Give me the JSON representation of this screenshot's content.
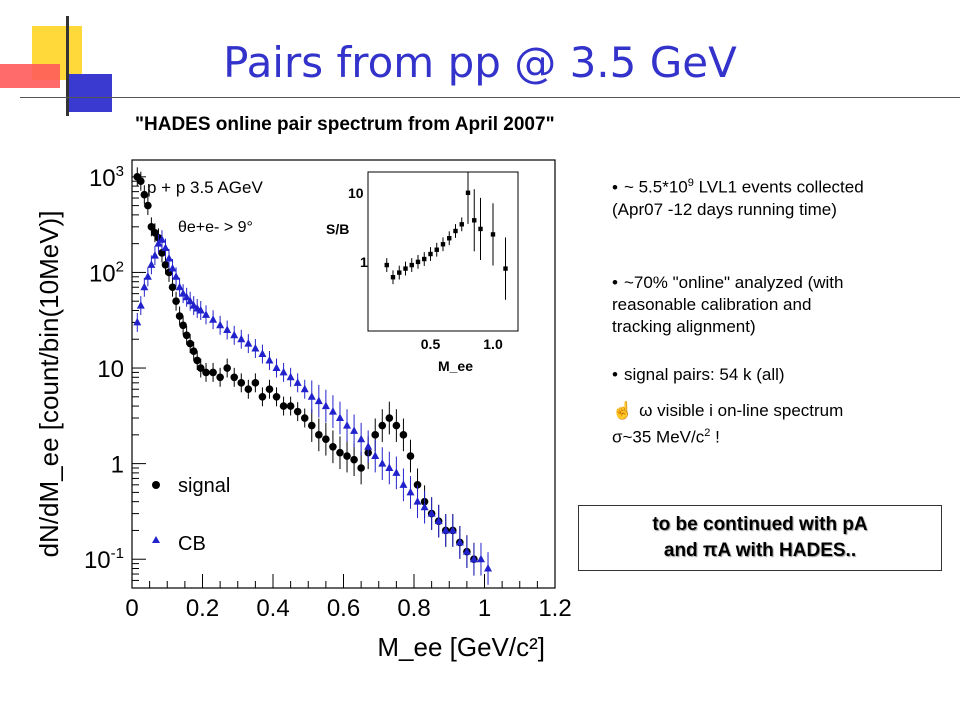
{
  "slide": {
    "title": "Pairs from pp @ 3.5 GeV",
    "subtitle": "\"HADES online pair spectrum from April 2007\"",
    "accent_colors": {
      "title": "#3333cc",
      "deco_yellow": "#ffd93a",
      "deco_red": "#ff5050",
      "deco_blue": "#3a3ad0"
    }
  },
  "bullets": [
    {
      "pre": "~ 5.5*10",
      "sup": "9",
      "post": " LVL1 events collected",
      "line2": "(Apr07 -12 days running time)"
    },
    {
      "text": "~70% \"online\" analyzed (with",
      "line2": "reasonable calibration and",
      "line3": "tracking alignment)"
    },
    {
      "text": "signal pairs: 54 k (all)"
    },
    {
      "icon": "pointing-hand-icon",
      "text": "ω  visible i on-line spectrum",
      "line2_pre": "σ~35 MeV/c",
      "line2_sup": "2",
      "line2_post": "  !"
    }
  ],
  "note": {
    "line1": "to be continued with pA",
    "line2": "and πA with HADES.."
  },
  "chart_data": [
    {
      "type": "scatter",
      "title": "",
      "xlabel": "M_ee [GeV/c²]",
      "ylabel": "dN/dM_ee [count/bin(10MeV)]",
      "xlim": [
        0,
        1.2
      ],
      "ylim": [
        0.05,
        1500
      ],
      "yscale": "log",
      "xticks": [
        "0",
        "0.2",
        "0.4",
        "0.6",
        "0.8",
        "1",
        "1.2"
      ],
      "yticks": [
        "10^3",
        "10^2",
        "10",
        "1",
        "10^-1"
      ],
      "annotations": [
        "p + p  3.5 AGeV",
        "θe+e- > 9°"
      ],
      "legend": [
        "signal",
        "CB"
      ],
      "series": [
        {
          "name": "signal",
          "color": "#000000",
          "marker": "circle",
          "x": [
            0.015,
            0.025,
            0.035,
            0.045,
            0.055,
            0.065,
            0.075,
            0.085,
            0.095,
            0.105,
            0.115,
            0.125,
            0.135,
            0.145,
            0.155,
            0.165,
            0.175,
            0.185,
            0.195,
            0.21,
            0.23,
            0.25,
            0.27,
            0.29,
            0.31,
            0.33,
            0.35,
            0.37,
            0.39,
            0.41,
            0.43,
            0.45,
            0.47,
            0.49,
            0.51,
            0.53,
            0.55,
            0.57,
            0.59,
            0.61,
            0.63,
            0.65,
            0.67,
            0.69,
            0.71,
            0.73,
            0.75,
            0.77,
            0.79,
            0.81,
            0.83,
            0.85,
            0.87,
            0.89,
            0.91,
            0.93,
            0.95,
            0.97
          ],
          "y": [
            1000,
            900,
            650,
            500,
            300,
            260,
            230,
            160,
            120,
            100,
            70,
            50,
            35,
            28,
            22,
            18,
            15,
            12,
            10,
            9,
            9,
            8,
            10,
            8,
            7,
            6,
            7,
            5,
            6,
            5,
            4,
            4,
            3.5,
            3,
            2.5,
            2,
            1.8,
            1.5,
            1.3,
            1.2,
            1.1,
            0.9,
            1.3,
            2,
            2.5,
            3,
            2.5,
            2,
            1.2,
            0.6,
            0.4,
            0.3,
            0.25,
            0.2,
            0.2,
            0.15,
            0.12,
            0.1
          ]
        },
        {
          "name": "CB",
          "color": "#2222cc",
          "marker": "triangle",
          "x": [
            0.015,
            0.025,
            0.035,
            0.045,
            0.055,
            0.065,
            0.075,
            0.085,
            0.095,
            0.105,
            0.115,
            0.125,
            0.135,
            0.145,
            0.155,
            0.165,
            0.175,
            0.185,
            0.195,
            0.21,
            0.23,
            0.25,
            0.27,
            0.29,
            0.31,
            0.33,
            0.35,
            0.37,
            0.39,
            0.41,
            0.43,
            0.45,
            0.47,
            0.49,
            0.51,
            0.53,
            0.55,
            0.57,
            0.59,
            0.61,
            0.63,
            0.65,
            0.67,
            0.69,
            0.71,
            0.73,
            0.75,
            0.77,
            0.79,
            0.81,
            0.83,
            0.85,
            0.87,
            0.89,
            0.91,
            0.93,
            0.95,
            0.97,
            0.99,
            1.01
          ],
          "y": [
            30,
            45,
            70,
            90,
            120,
            150,
            200,
            220,
            180,
            140,
            110,
            90,
            70,
            60,
            55,
            50,
            45,
            42,
            40,
            36,
            32,
            28,
            25,
            22,
            20,
            18,
            16,
            14,
            12,
            10,
            9,
            8,
            7,
            6,
            5,
            4.5,
            4,
            3.5,
            3,
            2.5,
            2.2,
            1.8,
            1.5,
            1.2,
            1,
            0.9,
            0.8,
            0.6,
            0.5,
            0.4,
            0.35,
            0.3,
            0.25,
            0.2,
            0.2,
            0.15,
            0.12,
            0.1,
            0.1,
            0.08
          ]
        }
      ]
    },
    {
      "type": "scatter",
      "title": "",
      "ylabel": "S/B",
      "xlabel": "M_ee",
      "xlim": [
        0,
        1.2
      ],
      "ylim": [
        0.1,
        20
      ],
      "yscale": "log",
      "tick_labels_bold": [
        "10",
        "1",
        "0.5",
        "1.0"
      ],
      "series": [
        {
          "name": "",
          "color": "#000000",
          "marker": "square",
          "x": [
            0.15,
            0.2,
            0.25,
            0.3,
            0.35,
            0.4,
            0.45,
            0.5,
            0.55,
            0.6,
            0.65,
            0.7,
            0.75,
            0.8,
            0.85,
            0.9,
            1.0,
            1.1
          ],
          "y": [
            0.9,
            0.6,
            0.7,
            0.8,
            0.9,
            1.0,
            1.1,
            1.3,
            1.5,
            1.8,
            2.2,
            2.8,
            3.5,
            10,
            4,
            3,
            2.5,
            0.8
          ]
        }
      ]
    }
  ]
}
